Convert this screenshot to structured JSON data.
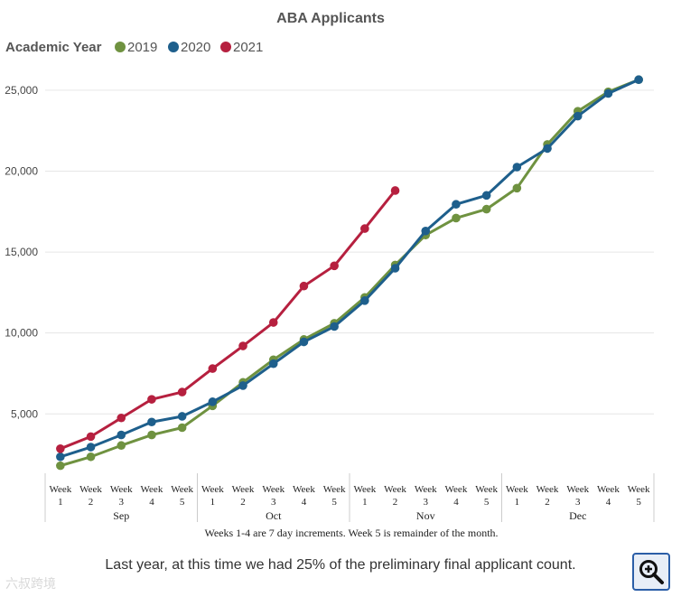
{
  "chart_data": {
    "type": "line",
    "title": "ABA Applicants",
    "legend_title": "Academic Year",
    "legend_position": "top-left",
    "ylim": [
      1500,
      26500
    ],
    "yticks": [
      5000,
      10000,
      15000,
      20000,
      25000
    ],
    "ytick_labels": [
      "5,000",
      "10,000",
      "15,000",
      "20,000",
      "25,000"
    ],
    "x_labels": [
      [
        "Week",
        "1"
      ],
      [
        "Week",
        "2"
      ],
      [
        "Week",
        "3"
      ],
      [
        "Week",
        "4"
      ],
      [
        "Week",
        "5"
      ],
      [
        "Week",
        "1"
      ],
      [
        "Week",
        "2"
      ],
      [
        "Week",
        "3"
      ],
      [
        "Week",
        "4"
      ],
      [
        "Week",
        "5"
      ],
      [
        "Week",
        "1"
      ],
      [
        "Week",
        "2"
      ],
      [
        "Week",
        "3"
      ],
      [
        "Week",
        "4"
      ],
      [
        "Week",
        "5"
      ],
      [
        "Week",
        "1"
      ],
      [
        "Week",
        "2"
      ],
      [
        "Week",
        "3"
      ],
      [
        "Week",
        "4"
      ],
      [
        "Week",
        "5"
      ]
    ],
    "months": [
      "Sep",
      "Oct",
      "Nov",
      "Dec"
    ],
    "footnote": "Weeks 1-4 are 7 day increments. Week 5 is remainder of the month.",
    "series": [
      {
        "name": "2019",
        "color": "#6f9240",
        "values": [
          1800,
          2350,
          3050,
          3700,
          4150,
          5500,
          6950,
          8350,
          9600,
          10600,
          12200,
          14200,
          16050,
          17100,
          17650,
          18950,
          21650,
          23700,
          24900,
          25650
        ]
      },
      {
        "name": "2020",
        "color": "#1e5f8c",
        "values": [
          2350,
          2950,
          3700,
          4500,
          4850,
          5750,
          6750,
          8100,
          9450,
          10400,
          12000,
          14000,
          16300,
          17950,
          18500,
          20250,
          21400,
          23400,
          24800,
          25650
        ]
      },
      {
        "name": "2021",
        "color": "#b6203f",
        "values": [
          2850,
          3600,
          4750,
          5900,
          6350,
          7800,
          9200,
          10650,
          12900,
          14150,
          16450,
          18800,
          null,
          null,
          null,
          null,
          null,
          null,
          null,
          null
        ]
      }
    ]
  },
  "caption": "Last year, at this time we had 25% of the preliminary final applicant count.",
  "watermark": "六叔跨境",
  "icons": {
    "zoom": "zoom-in-icon"
  }
}
